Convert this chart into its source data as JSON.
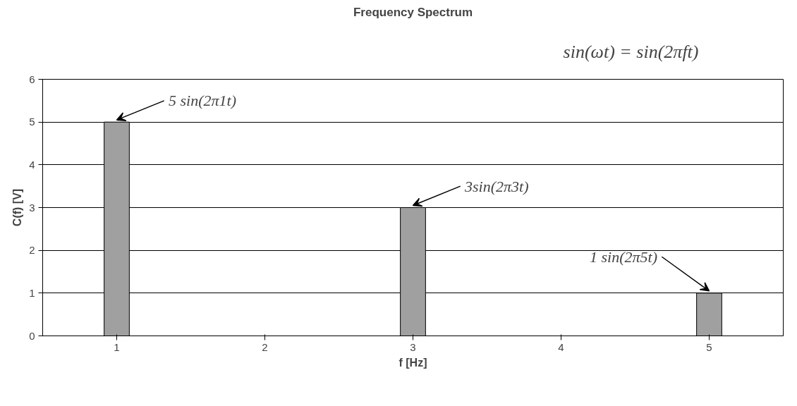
{
  "chart_data": {
    "type": "bar",
    "title": "Frequency Spectrum",
    "xlabel": "f [Hz]",
    "ylabel": "C(f) [V]",
    "categories": [
      "1",
      "2",
      "3",
      "4",
      "5"
    ],
    "values": [
      5,
      0,
      3,
      0,
      1
    ],
    "color": "#a0a0a0",
    "ylim": [
      0,
      6
    ],
    "yticks": [
      0,
      1,
      2,
      3,
      4,
      5,
      6
    ],
    "grid": "y",
    "annotations": [
      "sin(ωt) = sin(2πft)",
      {
        "text": "5 sin(2π1t)",
        "x": "1",
        "y": 5
      },
      {
        "text": "3sin(2π3t)",
        "x": "3",
        "y": 3
      },
      {
        "text": "1 sin(2π5t)",
        "x": "5",
        "y": 1
      }
    ]
  }
}
